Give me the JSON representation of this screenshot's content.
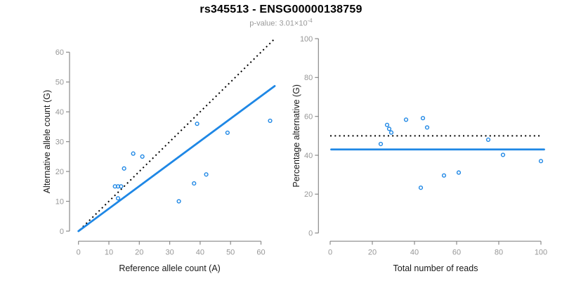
{
  "header": {
    "title": "rs345513 - ENSG00000138759",
    "p_value_base": "p-value: 3.01×10",
    "p_value_exponent": "-4"
  },
  "colors": {
    "point_blue": "#1E87E5",
    "fit_blue": "#1E87E5",
    "reference_black": "#000000",
    "axis_gray": "#8A8A8A",
    "tick_label_gray": "#979797",
    "axis_title_dark": "#1A1A1A",
    "subtitle_gray": "#9A9A9A"
  },
  "chart_data": [
    {
      "type": "scatter",
      "panel": "left",
      "title": "rs345513 - ENSG00000138759",
      "subtitle": "p-value: 3.01×10^-4",
      "xlabel": "Reference allele count (A)",
      "ylabel": "Alternative allele count (G)",
      "xlim": [
        0,
        64.5
      ],
      "ylim": [
        0,
        64.5
      ],
      "xticks": [
        0,
        10,
        20,
        30,
        40,
        50,
        60
      ],
      "yticks": [
        0,
        10,
        20,
        30,
        40,
        50,
        60
      ],
      "grid": false,
      "legend": "none",
      "marker": "open-circle",
      "points": [
        [
          12,
          15
        ],
        [
          13,
          11
        ],
        [
          13,
          15
        ],
        [
          14,
          15
        ],
        [
          15,
          21
        ],
        [
          18,
          26
        ],
        [
          21,
          25
        ],
        [
          33,
          10
        ],
        [
          38,
          16
        ],
        [
          39,
          36
        ],
        [
          42,
          19
        ],
        [
          49,
          33
        ],
        [
          63,
          37
        ]
      ],
      "lines": [
        {
          "name": "identity-reference-line",
          "style": "dotted",
          "color": "#000000",
          "x": [
            0.4,
            64.5
          ],
          "y": [
            0.4,
            64.5
          ]
        },
        {
          "name": "fit-line",
          "style": "solid",
          "color": "#1E87E5",
          "x": [
            0,
            64.5
          ],
          "y": [
            0,
            48.65
          ]
        }
      ]
    },
    {
      "type": "scatter",
      "panel": "right",
      "xlabel": "Total number of reads",
      "ylabel": "Percentage alternative (G)",
      "xlim": [
        0,
        104
      ],
      "ylim": [
        0,
        100
      ],
      "xticks": [
        0,
        20,
        40,
        60,
        80,
        100
      ],
      "yticks": [
        0,
        20,
        40,
        60,
        80,
        100
      ],
      "grid": false,
      "legend": "none",
      "marker": "open-circle",
      "points": [
        [
          24,
          45.8
        ],
        [
          27,
          55.6
        ],
        [
          28,
          53.6
        ],
        [
          29,
          51.7
        ],
        [
          36,
          58.3
        ],
        [
          43,
          23.3
        ],
        [
          44,
          59.1
        ],
        [
          46,
          54.3
        ],
        [
          54,
          29.6
        ],
        [
          61,
          31.1
        ],
        [
          75,
          48
        ],
        [
          82,
          40.2
        ],
        [
          100,
          37
        ]
      ],
      "lines": [
        {
          "name": "expected-50-percent-line",
          "style": "dotted",
          "color": "#000000",
          "x": [
            0,
            100
          ],
          "y": [
            50,
            50
          ]
        },
        {
          "name": "overall-percentage-line",
          "style": "solid",
          "color": "#1E87E5",
          "x": [
            0.5,
            101.5
          ],
          "y": [
            43,
            43
          ]
        }
      ]
    }
  ]
}
